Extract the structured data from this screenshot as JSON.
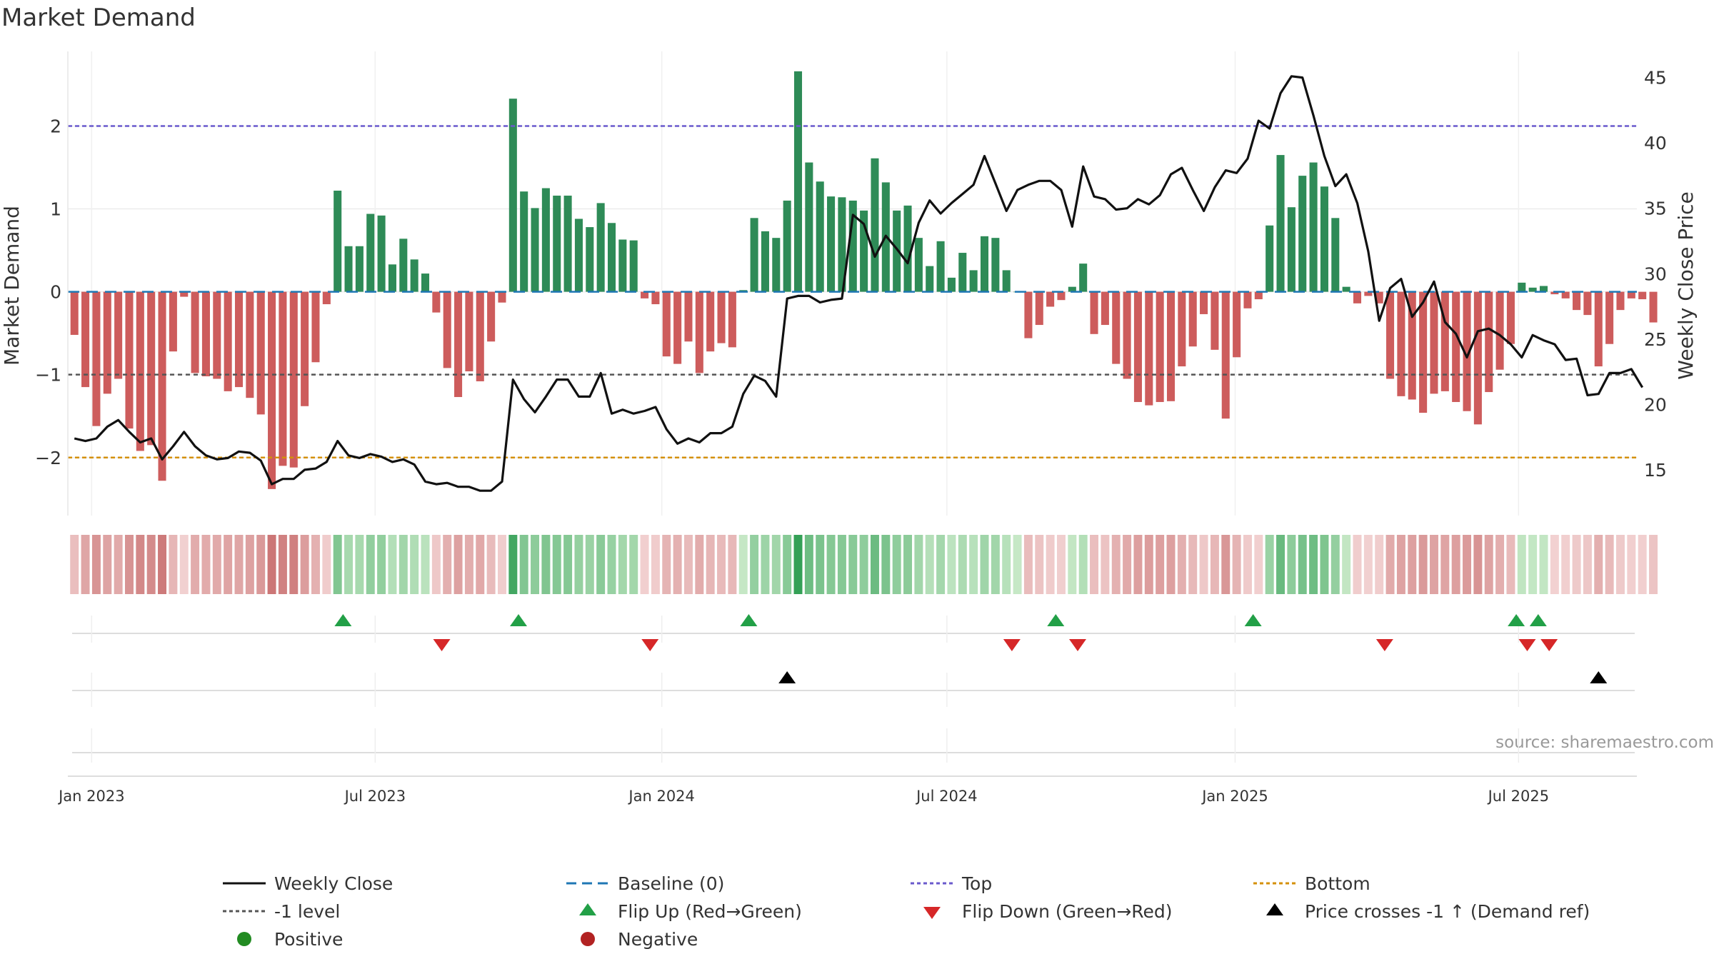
{
  "chart_data": {
    "type": "bar",
    "title": "Market Demand",
    "ylabel": "Market Demand",
    "y2label": "Weekly Close Price",
    "ylim": [
      -2.7,
      2.9
    ],
    "y2lim": [
      11.5,
      47
    ],
    "yticks": [
      -2,
      -1,
      0,
      1,
      2
    ],
    "yticklabels": [
      "−2",
      "−1",
      "0",
      "1",
      "2"
    ],
    "y2ticks": [
      15,
      20,
      25,
      30,
      35,
      40,
      45
    ],
    "y2ticklabels": [
      "15",
      "20",
      "25",
      "30",
      "35",
      "40",
      "45"
    ],
    "x_start_week": -1,
    "x_range_weeks": [
      -1.6,
      141.5
    ],
    "xticks": [
      {
        "label": "Jan 2023",
        "week": 0.57
      },
      {
        "label": "Jul 2023",
        "week": 26.43
      },
      {
        "label": "Jan 2024",
        "week": 52.57
      },
      {
        "label": "Jul 2024",
        "week": 78.57
      },
      {
        "label": "Jan 2025",
        "week": 104.86
      },
      {
        "label": "Jul 2025",
        "week": 130.71
      }
    ],
    "demand": [
      -0.52,
      -1.15,
      -1.62,
      -1.23,
      -1.05,
      -1.65,
      -1.92,
      -1.85,
      -2.28,
      -0.72,
      -0.06,
      -0.98,
      -1.02,
      -1.05,
      -1.2,
      -1.15,
      -1.28,
      -1.48,
      -2.38,
      -2.1,
      -2.12,
      -1.38,
      -0.85,
      -0.15,
      1.22,
      0.55,
      0.55,
      0.94,
      0.92,
      0.33,
      0.64,
      0.39,
      0.22,
      -0.25,
      -0.92,
      -1.27,
      -0.96,
      -1.08,
      -0.6,
      -0.13,
      2.33,
      1.21,
      1.01,
      1.25,
      1.16,
      1.16,
      0.88,
      0.78,
      1.07,
      0.83,
      0.63,
      0.62,
      -0.08,
      -0.15,
      -0.78,
      -0.87,
      -0.6,
      -0.98,
      -0.72,
      -0.62,
      -0.67,
      0.02,
      0.89,
      0.73,
      0.65,
      1.1,
      2.66,
      1.56,
      1.33,
      1.15,
      1.14,
      1.1,
      0.98,
      1.61,
      1.32,
      0.98,
      1.04,
      0.65,
      0.31,
      0.61,
      0.17,
      0.47,
      0.26,
      0.67,
      0.65,
      0.26,
      0.0,
      -0.56,
      -0.4,
      -0.18,
      -0.1,
      0.06,
      0.34,
      -0.51,
      -0.4,
      -0.87,
      -1.05,
      -1.33,
      -1.37,
      -1.33,
      -1.32,
      -0.9,
      -0.66,
      -0.27,
      -0.7,
      -1.53,
      -0.79,
      -0.2,
      -0.09,
      0.8,
      1.65,
      1.02,
      1.4,
      1.56,
      1.27,
      0.89,
      0.06,
      -0.14,
      -0.05,
      -0.14,
      -1.05,
      -1.26,
      -1.3,
      -1.46,
      -1.23,
      -1.2,
      -1.33,
      -1.44,
      -1.6,
      -1.21,
      -0.94,
      -0.63,
      0.11,
      0.05,
      0.07,
      -0.03,
      -0.08,
      -0.22,
      -0.28,
      -0.9,
      -0.63,
      -0.22,
      -0.08,
      -0.09,
      -0.37
    ],
    "close": [
      17.4,
      17.2,
      17.4,
      18.3,
      18.8,
      17.9,
      17.1,
      17.4,
      15.8,
      16.8,
      17.9,
      16.8,
      16.1,
      15.8,
      15.9,
      16.4,
      16.3,
      15.7,
      13.9,
      14.3,
      14.3,
      15.0,
      15.1,
      15.6,
      17.2,
      16.1,
      15.9,
      16.2,
      16.0,
      15.6,
      15.8,
      15.4,
      14.1,
      13.9,
      14.0,
      13.7,
      13.7,
      13.4,
      13.4,
      14.1,
      21.9,
      20.4,
      19.4,
      20.6,
      21.9,
      21.9,
      20.6,
      20.6,
      22.4,
      19.3,
      19.6,
      19.3,
      19.5,
      19.8,
      18.1,
      17.0,
      17.4,
      17.1,
      17.8,
      17.8,
      18.3,
      20.8,
      22.2,
      21.8,
      20.6,
      28.1,
      28.3,
      28.3,
      27.8,
      28.0,
      28.1,
      34.5,
      33.8,
      31.3,
      32.9,
      31.9,
      30.8,
      33.9,
      35.6,
      34.6,
      35.4,
      36.1,
      36.8,
      39.0,
      36.9,
      34.8,
      36.4,
      36.8,
      37.1,
      37.1,
      36.4,
      33.6,
      38.2,
      35.9,
      35.7,
      34.9,
      35.0,
      35.7,
      35.3,
      36.0,
      37.6,
      38.1,
      36.4,
      34.8,
      36.6,
      37.9,
      37.7,
      38.8,
      41.7,
      41.1,
      43.8,
      45.1,
      45.0,
      42.1,
      39.0,
      36.7,
      37.6,
      35.4,
      31.7,
      26.4,
      28.9,
      29.6,
      26.7,
      27.8,
      29.4,
      26.3,
      25.4,
      23.6,
      25.6,
      25.8,
      25.3,
      24.6,
      23.6,
      25.3,
      24.9,
      24.6,
      23.4,
      23.5,
      20.7,
      20.8,
      22.4,
      22.4,
      22.7,
      21.3
    ],
    "top_level": 2.0,
    "minus1_level": -1.0,
    "bottom_level": -2.0,
    "baseline": 0,
    "flip_up_weeks": [
      23.5,
      39.5,
      60.5,
      88.5,
      106.5,
      130.5,
      132.5
    ],
    "flip_down_weeks": [
      32.5,
      51.5,
      84.5,
      90.5,
      118.5,
      131.5,
      133.5
    ],
    "price_cross_weeks": [
      64,
      138
    ],
    "legend": [
      "Weekly Close",
      "Baseline (0)",
      "Top",
      "Bottom",
      "-1 level",
      "Flip Up (Red→Green)",
      "Flip Down (Green→Red)",
      "Price crosses -1 ↑ (Demand ref)",
      "Positive",
      "Negative"
    ],
    "source_note": "source: sharemaestro.com",
    "colors": {
      "positive": "#2e8b57",
      "negative": "#cd5c5c",
      "close": "#111111",
      "baseline": "#1f77b4",
      "top": "#6a5acd",
      "bottom": "#d4900a",
      "minus1": "#555555",
      "flip_up": "#22a047",
      "flip_down": "#d62728",
      "price_cross": "#000000",
      "legend_positive": "#228b22",
      "legend_negative": "#b22222"
    }
  }
}
